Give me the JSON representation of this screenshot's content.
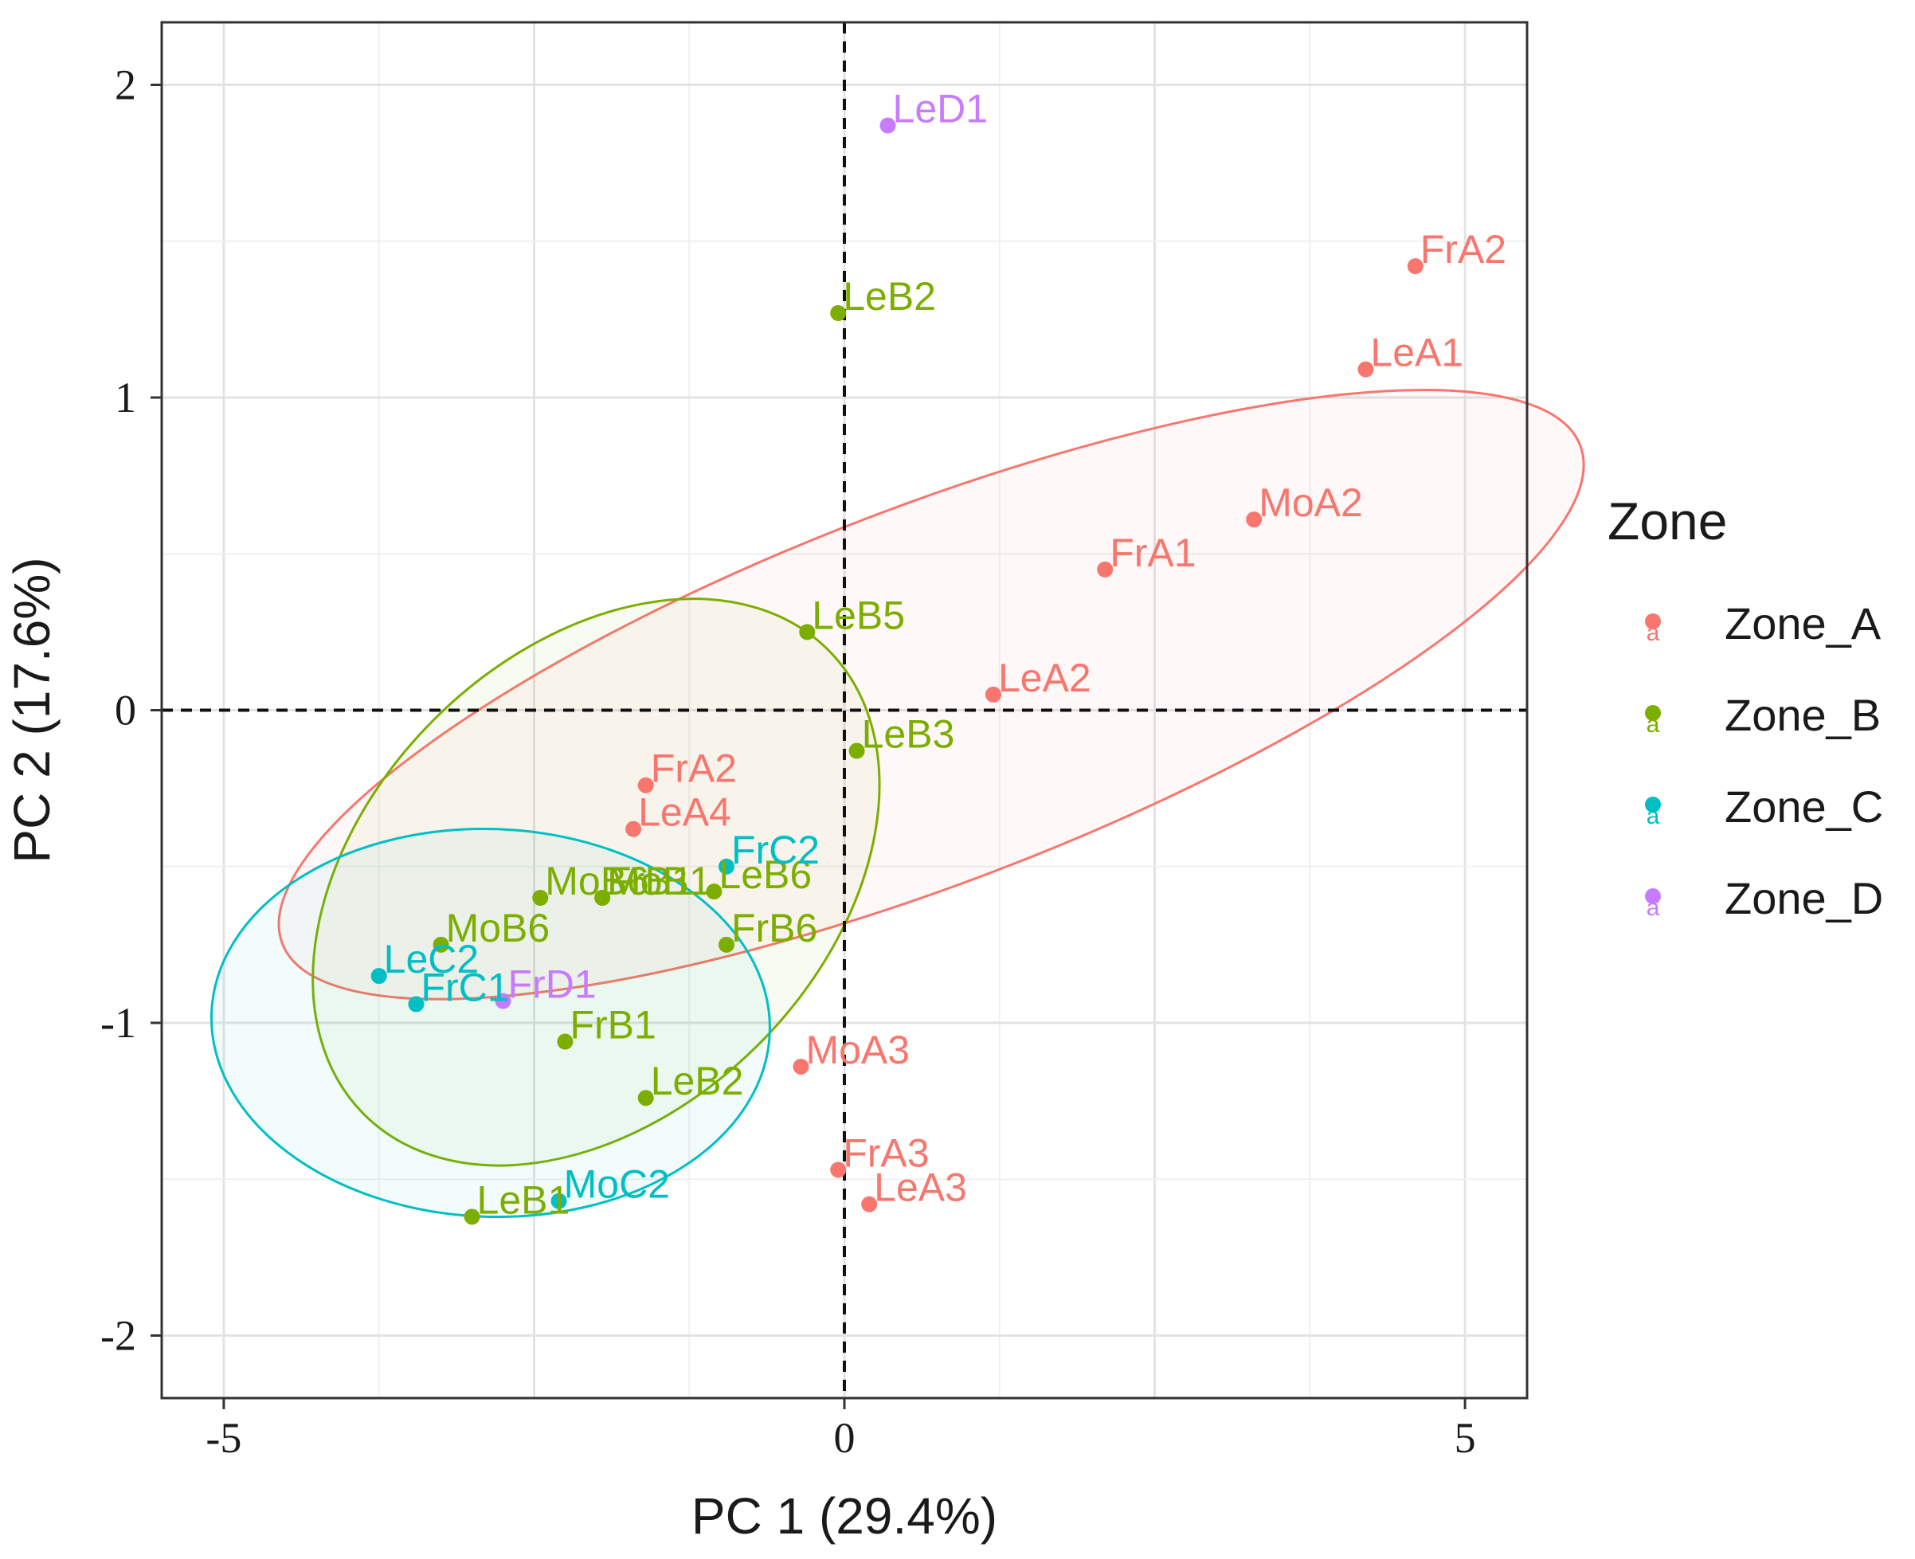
{
  "chart_data": {
    "type": "scatter",
    "xlabel": "PC 1 (29.4%)",
    "ylabel": "PC 2 (17.6%)",
    "xlim": [
      -5.5,
      5.5
    ],
    "ylim": [
      -2.2,
      2.2
    ],
    "x_ticks": [
      {
        "value": -5,
        "label": "-5"
      },
      {
        "value": 0,
        "label": "0"
      },
      {
        "value": 5,
        "label": "5"
      }
    ],
    "y_ticks": [
      {
        "value": -2,
        "label": "-2"
      },
      {
        "value": -1,
        "label": "-1"
      },
      {
        "value": 0,
        "label": "0"
      },
      {
        "value": 1,
        "label": "1"
      },
      {
        "value": 2,
        "label": "2"
      }
    ],
    "grid": true,
    "reference_lines": {
      "x": 0,
      "y": 0,
      "style": "dashed"
    },
    "legend": {
      "title": "Zone",
      "placement": "right"
    },
    "series": [
      {
        "name": "Zone_A",
        "color": "#F8766D",
        "points": [
          {
            "label": "FrA2",
            "x": 4.6,
            "y": 1.42
          },
          {
            "label": "LeA1",
            "x": 4.2,
            "y": 1.09
          },
          {
            "label": "MoA2",
            "x": 3.3,
            "y": 0.61
          },
          {
            "label": "FrA1",
            "x": 2.1,
            "y": 0.45
          },
          {
            "label": "LeA2",
            "x": 1.2,
            "y": 0.05
          },
          {
            "label": "FrA2",
            "x": -1.6,
            "y": -0.24
          },
          {
            "label": "LeA4",
            "x": -1.7,
            "y": -0.38
          },
          {
            "label": "MoA3",
            "x": -0.35,
            "y": -1.14
          },
          {
            "label": "FrA3",
            "x": -0.05,
            "y": -1.47
          },
          {
            "label": "LeA3",
            "x": 0.2,
            "y": -1.58
          }
        ],
        "ellipse": {
          "cx": 0.7,
          "cy": 0.05,
          "rx": 5.6,
          "ry": 0.6,
          "angle_deg": -21
        }
      },
      {
        "name": "Zone_B",
        "color": "#7CAE00",
        "points": [
          {
            "label": "LeB2",
            "x": -0.05,
            "y": 1.27
          },
          {
            "label": "LeB5",
            "x": -0.3,
            "y": 0.25
          },
          {
            "label": "LeB3",
            "x": 0.1,
            "y": -0.13
          },
          {
            "label": "MoB6",
            "x": -2.45,
            "y": -0.6
          },
          {
            "label": "FrB1",
            "x": -1.95,
            "y": -0.6
          },
          {
            "label": "MoB1",
            "x": -1.95,
            "y": -0.6
          },
          {
            "label": "LeB6",
            "x": -1.05,
            "y": -0.58
          },
          {
            "label": "MoB6",
            "x": -3.25,
            "y": -0.75
          },
          {
            "label": "FrB6",
            "x": -0.95,
            "y": -0.75
          },
          {
            "label": "FrB1",
            "x": -2.25,
            "y": -1.06
          },
          {
            "label": "LeB2",
            "x": -1.6,
            "y": -1.24
          },
          {
            "label": "LeB1",
            "x": -3.0,
            "y": -1.62
          }
        ],
        "ellipse": {
          "cx": -2.0,
          "cy": -0.55,
          "rx": 1.85,
          "ry": 1.05,
          "angle_deg": 45
        }
      },
      {
        "name": "Zone_C",
        "color": "#00BFC4",
        "points": [
          {
            "label": "FrC2",
            "x": -0.95,
            "y": -0.5
          },
          {
            "label": "LeC2",
            "x": -3.75,
            "y": -0.85
          },
          {
            "label": "FrC1",
            "x": -3.45,
            "y": -0.94
          },
          {
            "label": "MoC2",
            "x": -2.3,
            "y": -1.57
          }
        ],
        "ellipse": {
          "cx": -2.85,
          "cy": -1.0,
          "rx": 2.25,
          "ry": 0.62,
          "angle_deg": 2
        }
      },
      {
        "name": "Zone_D",
        "color": "#C77CFF",
        "points": [
          {
            "label": "LeD1",
            "x": 0.35,
            "y": 1.87
          },
          {
            "label": "FrD1",
            "x": -2.75,
            "y": -0.93
          }
        ]
      }
    ]
  }
}
